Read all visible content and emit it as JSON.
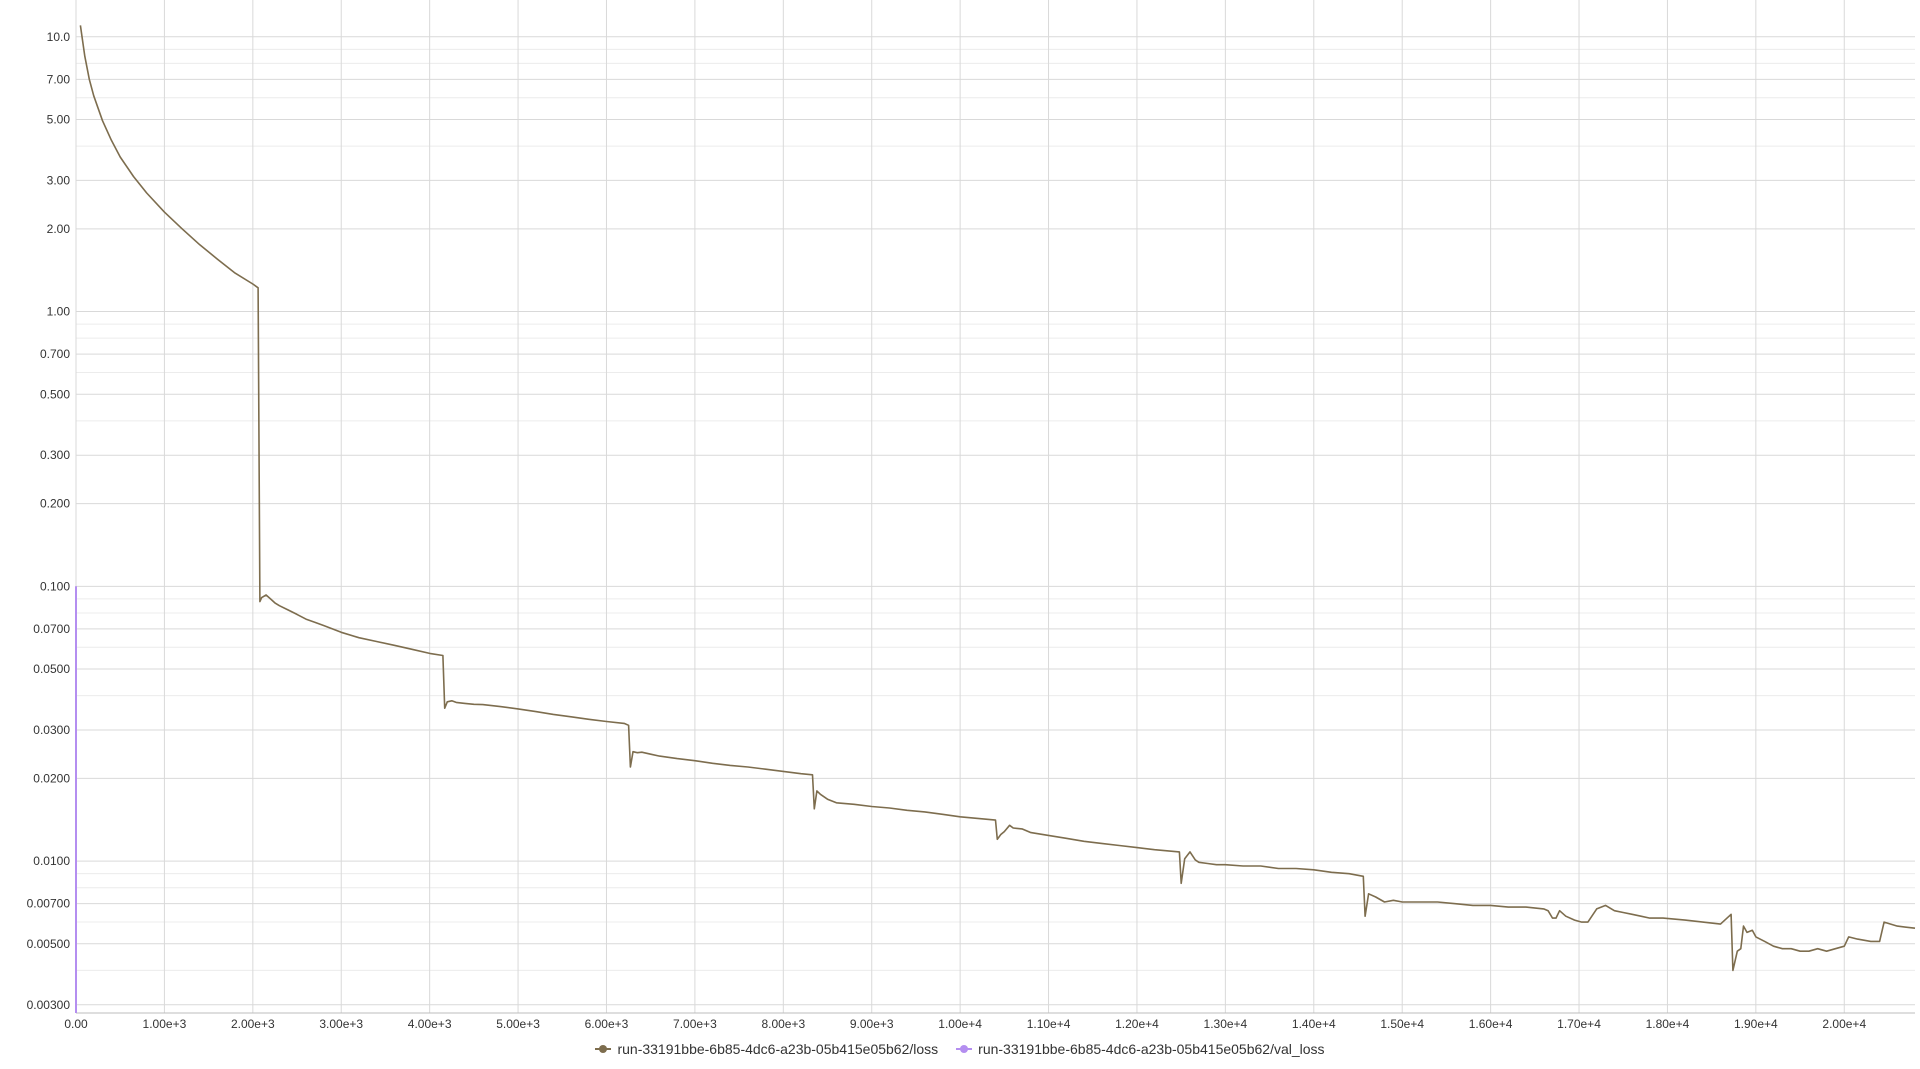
{
  "chart_data": {
    "type": "line",
    "title": "",
    "xlabel": "",
    "ylabel": "",
    "x_scale": "linear",
    "y_scale": "log",
    "xlim": [
      0,
      20800
    ],
    "ylim": [
      0.0028,
      12
    ],
    "grid": true,
    "legend_position": "bottom-center",
    "x_ticks": [
      {
        "value": 0,
        "label": "0.00"
      },
      {
        "value": 1000,
        "label": "1.00e+3"
      },
      {
        "value": 2000,
        "label": "2.00e+3"
      },
      {
        "value": 3000,
        "label": "3.00e+3"
      },
      {
        "value": 4000,
        "label": "4.00e+3"
      },
      {
        "value": 5000,
        "label": "5.00e+3"
      },
      {
        "value": 6000,
        "label": "6.00e+3"
      },
      {
        "value": 7000,
        "label": "7.00e+3"
      },
      {
        "value": 8000,
        "label": "8.00e+3"
      },
      {
        "value": 9000,
        "label": "9.00e+3"
      },
      {
        "value": 10000,
        "label": "1.00e+4"
      },
      {
        "value": 11000,
        "label": "1.10e+4"
      },
      {
        "value": 12000,
        "label": "1.20e+4"
      },
      {
        "value": 13000,
        "label": "1.30e+4"
      },
      {
        "value": 14000,
        "label": "1.40e+4"
      },
      {
        "value": 15000,
        "label": "1.50e+4"
      },
      {
        "value": 16000,
        "label": "1.60e+4"
      },
      {
        "value": 17000,
        "label": "1.70e+4"
      },
      {
        "value": 18000,
        "label": "1.80e+4"
      },
      {
        "value": 19000,
        "label": "1.90e+4"
      },
      {
        "value": 20000,
        "label": "2.00e+4"
      }
    ],
    "y_ticks": [
      {
        "value": 10,
        "label": "10.0"
      },
      {
        "value": 7,
        "label": "7.00"
      },
      {
        "value": 5,
        "label": "5.00"
      },
      {
        "value": 3,
        "label": "3.00"
      },
      {
        "value": 2,
        "label": "2.00"
      },
      {
        "value": 1,
        "label": "1.00"
      },
      {
        "value": 0.7,
        "label": "0.700"
      },
      {
        "value": 0.5,
        "label": "0.500"
      },
      {
        "value": 0.3,
        "label": "0.300"
      },
      {
        "value": 0.2,
        "label": "0.200"
      },
      {
        "value": 0.1,
        "label": "0.100"
      },
      {
        "value": 0.07,
        "label": "0.0700"
      },
      {
        "value": 0.05,
        "label": "0.0500"
      },
      {
        "value": 0.03,
        "label": "0.0300"
      },
      {
        "value": 0.02,
        "label": "0.0200"
      },
      {
        "value": 0.01,
        "label": "0.0100"
      },
      {
        "value": 0.007,
        "label": "0.00700"
      },
      {
        "value": 0.005,
        "label": "0.00500"
      },
      {
        "value": 0.003,
        "label": "0.00300"
      }
    ],
    "y_minor_gridlines": [
      9,
      8,
      6,
      4,
      0.9,
      0.8,
      0.6,
      0.4,
      0.09,
      0.08,
      0.06,
      0.04,
      0.009,
      0.008,
      0.006,
      0.004
    ],
    "series": [
      {
        "name": "run-33191bbe-6b85-4dc6-a23b-05b415e05b62/loss",
        "color": "#7d6d4e",
        "x": [
          50,
          100,
          150,
          200,
          300,
          400,
          500,
          650,
          800,
          1000,
          1200,
          1400,
          1600,
          1800,
          2000,
          2060,
          2080,
          2100,
          2150,
          2200,
          2250,
          2300,
          2400,
          2500,
          2600,
          2700,
          2800,
          2900,
          3000,
          3200,
          3400,
          3600,
          3800,
          4000,
          4150,
          4170,
          4200,
          4250,
          4300,
          4400,
          4500,
          4600,
          4800,
          5000,
          5200,
          5400,
          5600,
          5800,
          6000,
          6200,
          6250,
          6270,
          6300,
          6350,
          6400,
          6500,
          6600,
          6800,
          7000,
          7200,
          7400,
          7600,
          7800,
          8000,
          8200,
          8330,
          8350,
          8380,
          8420,
          8500,
          8600,
          8800,
          9000,
          9200,
          9400,
          9600,
          9800,
          10000,
          10200,
          10400,
          10420,
          10460,
          10500,
          10560,
          10600,
          10700,
          10800,
          11000,
          11200,
          11400,
          11600,
          11800,
          12000,
          12200,
          12480,
          12500,
          12540,
          12600,
          12660,
          12700,
          12800,
          12900,
          13000,
          13200,
          13400,
          13600,
          13800,
          14000,
          14200,
          14400,
          14560,
          14580,
          14620,
          14700,
          14800,
          14900,
          15000,
          15200,
          15400,
          15600,
          15800,
          16000,
          16200,
          16400,
          16600,
          16650,
          16700,
          16740,
          16780,
          16850,
          16950,
          17030,
          17100,
          17200,
          17300,
          17400,
          17500,
          17600,
          17700,
          17800,
          17950,
          18200,
          18400,
          18600,
          18720,
          18740,
          18790,
          18830,
          18860,
          18900,
          18960,
          19000,
          19100,
          19200,
          19300,
          19400,
          19500,
          19600,
          19700,
          19800,
          19900,
          20000,
          20050,
          20150,
          20300,
          20400,
          20450,
          20600,
          20800
        ],
        "values": [
          11,
          8.5,
          7.0,
          6.1,
          4.95,
          4.2,
          3.65,
          3.1,
          2.7,
          2.3,
          2.0,
          1.75,
          1.55,
          1.38,
          1.26,
          1.22,
          0.088,
          0.091,
          0.093,
          0.09,
          0.087,
          0.085,
          0.082,
          0.079,
          0.076,
          0.074,
          0.072,
          0.07,
          0.068,
          0.065,
          0.063,
          0.061,
          0.059,
          0.057,
          0.056,
          0.036,
          0.038,
          0.0383,
          0.0378,
          0.0375,
          0.0372,
          0.0371,
          0.0365,
          0.0358,
          0.035,
          0.0342,
          0.0335,
          0.0328,
          0.0322,
          0.0317,
          0.0312,
          0.022,
          0.025,
          0.0248,
          0.0249,
          0.0245,
          0.0241,
          0.0236,
          0.0232,
          0.0227,
          0.0223,
          0.022,
          0.0216,
          0.0212,
          0.0208,
          0.0206,
          0.0155,
          0.018,
          0.0175,
          0.0168,
          0.0163,
          0.0161,
          0.0158,
          0.0156,
          0.0153,
          0.0151,
          0.0148,
          0.0145,
          0.0143,
          0.0141,
          0.012,
          0.0125,
          0.0128,
          0.0135,
          0.0132,
          0.0131,
          0.0127,
          0.0124,
          0.0121,
          0.0118,
          0.0116,
          0.0114,
          0.0112,
          0.011,
          0.0108,
          0.0083,
          0.0102,
          0.0108,
          0.0101,
          0.0099,
          0.0098,
          0.0097,
          0.0097,
          0.0096,
          0.0096,
          0.0094,
          0.0094,
          0.0093,
          0.0091,
          0.009,
          0.0088,
          0.0063,
          0.0076,
          0.0074,
          0.0071,
          0.0072,
          0.0071,
          0.0071,
          0.0071,
          0.007,
          0.0069,
          0.0069,
          0.0068,
          0.0068,
          0.0067,
          0.0066,
          0.0062,
          0.0062,
          0.0066,
          0.0063,
          0.0061,
          0.006,
          0.006,
          0.0067,
          0.0069,
          0.0066,
          0.0065,
          0.0064,
          0.0063,
          0.0062,
          0.0062,
          0.0061,
          0.006,
          0.0059,
          0.0064,
          0.004,
          0.0047,
          0.0048,
          0.0058,
          0.0055,
          0.0056,
          0.0053,
          0.0051,
          0.0049,
          0.0048,
          0.0048,
          0.0047,
          0.0047,
          0.0048,
          0.0047,
          0.0048,
          0.0049,
          0.0053,
          0.0052,
          0.0051,
          0.0051,
          0.006,
          0.0058,
          0.0057
        ]
      },
      {
        "name": "run-33191bbe-6b85-4dc6-a23b-05b415e05b62/val_loss",
        "color": "#b48ef0",
        "x": [
          0,
          0
        ],
        "values": [
          0.1,
          0.0028
        ]
      }
    ]
  }
}
